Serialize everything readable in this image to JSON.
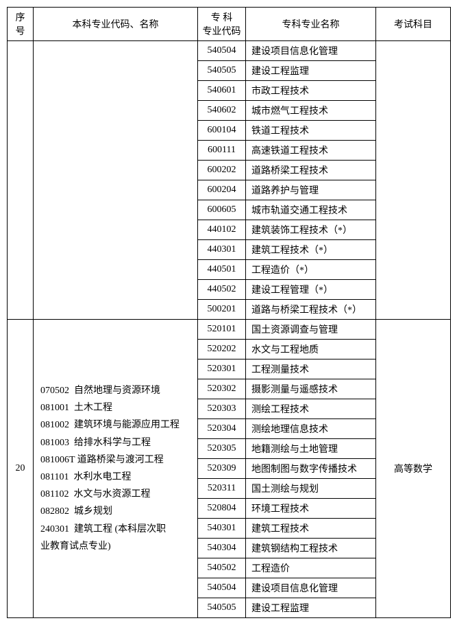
{
  "headers": {
    "seq": "序号",
    "major": "本科专业代码、名称",
    "spec_code_line1": "专  科",
    "spec_code_line2": "专业代码",
    "spec_name": "专科专业名称",
    "exam": "考试科目"
  },
  "group1": {
    "rows": [
      {
        "code": "540504",
        "name": "建设项目信息化管理"
      },
      {
        "code": "540505",
        "name": "建设工程监理"
      },
      {
        "code": "540601",
        "name": "市政工程技术"
      },
      {
        "code": "540602",
        "name": "城市燃气工程技术"
      },
      {
        "code": "600104",
        "name": "铁道工程技术"
      },
      {
        "code": "600111",
        "name": "高速铁道工程技术"
      },
      {
        "code": "600202",
        "name": "道路桥梁工程技术"
      },
      {
        "code": "600204",
        "name": "道路养护与管理"
      },
      {
        "code": "600605",
        "name": "城市轨道交通工程技术"
      },
      {
        "code": "440102",
        "name": "建筑装饰工程技术（*）"
      },
      {
        "code": "440301",
        "name": "建筑工程技术（*）"
      },
      {
        "code": "440501",
        "name": "工程造价（*）"
      },
      {
        "code": "440502",
        "name": "建设工程管理（*）"
      },
      {
        "code": "500201",
        "name": "道路与桥梁工程技术（*）"
      }
    ]
  },
  "group2": {
    "seq": "20",
    "exam": "高等数学",
    "major_lines": [
      "070502  自然地理与资源环境",
      "081001  土木工程",
      "081002  建筑环境与能源应用工程",
      "081003  给排水科学与工程",
      "081006T 道路桥梁与渡河工程",
      "081101  水利水电工程",
      "081102  水文与水资源工程",
      "082802  城乡规划",
      "240301  建筑工程 (本科层次职",
      "业教育试点专业)"
    ],
    "rows": [
      {
        "code": "520101",
        "name": "国土资源调查与管理"
      },
      {
        "code": "520202",
        "name": "水文与工程地质"
      },
      {
        "code": "520301",
        "name": "工程测量技术"
      },
      {
        "code": "520302",
        "name": "摄影测量与遥感技术"
      },
      {
        "code": "520303",
        "name": "测绘工程技术"
      },
      {
        "code": "520304",
        "name": "测绘地理信息技术"
      },
      {
        "code": "520305",
        "name": "地籍测绘与土地管理"
      },
      {
        "code": "520309",
        "name": "地图制图与数字传播技术"
      },
      {
        "code": "520311",
        "name": "国土测绘与规划"
      },
      {
        "code": "520804",
        "name": "环境工程技术"
      },
      {
        "code": "540301",
        "name": "建筑工程技术"
      },
      {
        "code": "540304",
        "name": "建筑钢结构工程技术"
      },
      {
        "code": "540502",
        "name": "工程造价"
      },
      {
        "code": "540504",
        "name": "建设项目信息化管理"
      },
      {
        "code": "540505",
        "name": "建设工程监理"
      }
    ]
  }
}
